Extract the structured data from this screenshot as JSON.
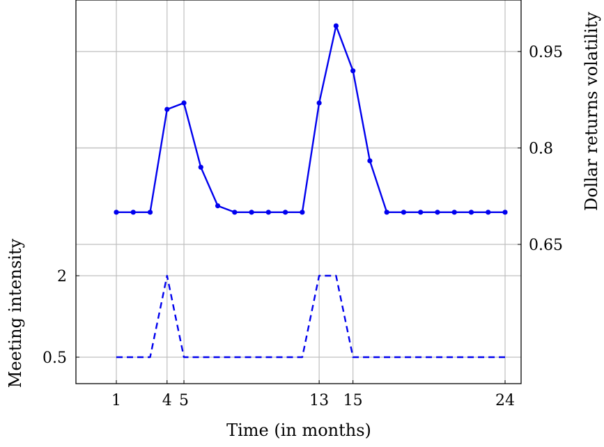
{
  "chart_data": {
    "type": "line",
    "xlabel": "Time (in months)",
    "ylabel_left": "Meeting intensity",
    "ylabel_right": "Dollar returns volatility",
    "x_ticks": [
      1,
      4,
      5,
      13,
      15,
      24
    ],
    "x_tick_labels": [
      "1",
      "4",
      "5",
      "13",
      "15",
      "24"
    ],
    "x_range": [
      -1.5,
      25
    ],
    "left_y_ticks": [
      0.5,
      2
    ],
    "left_y_tick_labels": [
      "0.5",
      "2"
    ],
    "right_y_ticks": [
      0.65,
      0.8,
      0.95
    ],
    "right_y_tick_labels": [
      "0.65",
      "0.8",
      "0.95"
    ],
    "grid": true,
    "series": [
      {
        "axis": "right",
        "style": "solid-with-markers",
        "color": "#0000ee",
        "x": [
          1,
          2,
          3,
          4,
          5,
          6,
          7,
          8,
          9,
          10,
          11,
          12,
          13,
          14,
          15,
          16,
          17,
          18,
          19,
          20,
          21,
          22,
          23,
          24
        ],
        "values": [
          0.7,
          0.7,
          0.7,
          0.86,
          0.87,
          0.77,
          0.71,
          0.7,
          0.7,
          0.7,
          0.7,
          0.7,
          0.87,
          0.99,
          0.92,
          0.78,
          0.7,
          0.7,
          0.7,
          0.7,
          0.7,
          0.7,
          0.7,
          0.7
        ]
      },
      {
        "axis": "left",
        "style": "dashed",
        "color": "#0000ee",
        "x": [
          1,
          2,
          3,
          4,
          5,
          6,
          7,
          8,
          9,
          10,
          11,
          12,
          13,
          14,
          15,
          16,
          17,
          18,
          19,
          20,
          21,
          22,
          23,
          24
        ],
        "values": [
          0.5,
          0.5,
          0.5,
          2,
          0.5,
          0.5,
          0.5,
          0.5,
          0.5,
          0.5,
          0.5,
          0.5,
          2,
          2,
          0.5,
          0.5,
          0.5,
          0.5,
          0.5,
          0.5,
          0.5,
          0.5,
          0.5,
          0.5
        ]
      }
    ]
  }
}
